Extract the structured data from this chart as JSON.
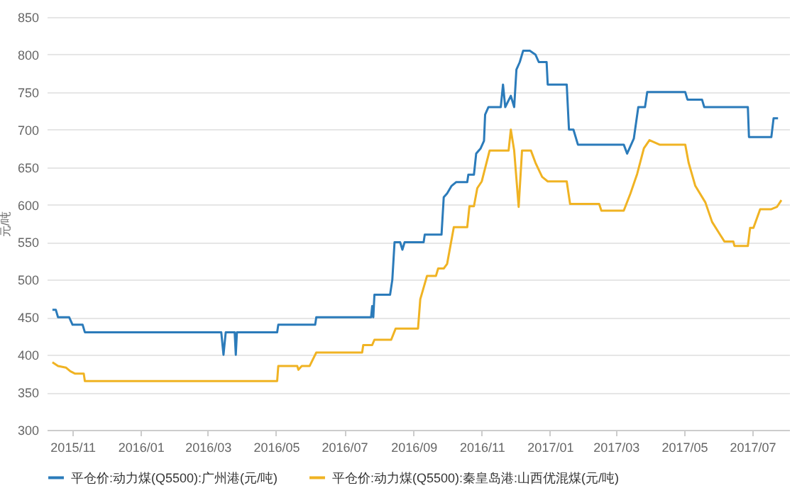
{
  "chart_data": {
    "type": "line",
    "ylabel": "元/吨",
    "xlim": [
      "2015-10-09",
      "2017-08-03"
    ],
    "xticks": [
      {
        "value": "2015-11",
        "label": "2015/11"
      },
      {
        "value": "2016-01",
        "label": "2016/01"
      },
      {
        "value": "2016-03",
        "label": "2016/03"
      },
      {
        "value": "2016-05",
        "label": "2016/05"
      },
      {
        "value": "2016-07",
        "label": "2016/07"
      },
      {
        "value": "2016-09",
        "label": "2016/09"
      },
      {
        "value": "2016-11",
        "label": "2016/11"
      },
      {
        "value": "2017-01",
        "label": "2017/01"
      },
      {
        "value": "2017-03",
        "label": "2017/03"
      },
      {
        "value": "2017-05",
        "label": "2017/05"
      },
      {
        "value": "2017-07",
        "label": "2017/07"
      }
    ],
    "ylim": [
      300,
      850
    ],
    "yticks": [
      300,
      350,
      400,
      450,
      500,
      550,
      600,
      650,
      700,
      750,
      800,
      850
    ],
    "grid": "y",
    "legend": "bottom",
    "marker": "none",
    "line_style": "solid",
    "series": [
      {
        "name": "平仓价:动力煤(Q5500):广州港(元/吨)",
        "color": "#2b7bba",
        "x": [
          "2015-10-14",
          "2015-10-17",
          "2015-10-19",
          "2015-10-29",
          "2015-11-01",
          "2015-11-10",
          "2015-11-12",
          "2016-03-13",
          "2016-03-15",
          "2016-03-17",
          "2016-03-25",
          "2016-03-26",
          "2016-03-27",
          "2016-05-02",
          "2016-05-03",
          "2016-06-05",
          "2016-06-06",
          "2016-07-25",
          "2016-07-26",
          "2016-07-27",
          "2016-07-28",
          "2016-08-11",
          "2016-08-13",
          "2016-08-15",
          "2016-08-20",
          "2016-08-22",
          "2016-08-24",
          "2016-09-10",
          "2016-09-11",
          "2016-09-26",
          "2016-09-28",
          "2016-10-01",
          "2016-10-05",
          "2016-10-09",
          "2016-10-19",
          "2016-10-20",
          "2016-10-25",
          "2016-10-27",
          "2016-10-31",
          "2016-11-03",
          "2016-11-04",
          "2016-11-07",
          "2016-11-18",
          "2016-11-20",
          "2016-11-22",
          "2016-11-27",
          "2016-11-30",
          "2016-12-02",
          "2016-12-05",
          "2016-12-08",
          "2016-12-14",
          "2016-12-19",
          "2016-12-22",
          "2016-12-29",
          "2016-12-30",
          "2017-01-16",
          "2017-01-18",
          "2017-01-22",
          "2017-01-26",
          "2017-03-08",
          "2017-03-11",
          "2017-03-17",
          "2017-03-21",
          "2017-03-27",
          "2017-03-29",
          "2017-05-02",
          "2017-05-04",
          "2017-05-17",
          "2017-05-19",
          "2017-06-27",
          "2017-06-28",
          "2017-07-18",
          "2017-07-20",
          "2017-07-24"
        ],
        "values": [
          460,
          460,
          450,
          450,
          440,
          440,
          430,
          430,
          400,
          430,
          430,
          400,
          430,
          430,
          440,
          440,
          450,
          450,
          465,
          450,
          480,
          480,
          500,
          550,
          550,
          540,
          550,
          550,
          560,
          560,
          610,
          615,
          625,
          630,
          630,
          640,
          640,
          668,
          675,
          685,
          720,
          730,
          730,
          760,
          730,
          745,
          730,
          780,
          790,
          805,
          805,
          800,
          790,
          790,
          760,
          760,
          700,
          700,
          680,
          680,
          668,
          688,
          730,
          730,
          750,
          750,
          740,
          740,
          730,
          730,
          690,
          690,
          715,
          715
        ]
      },
      {
        "name": "平仓价:动力煤(Q5500):秦皇岛港:山西优混煤(元/吨)",
        "color": "#f0b323",
        "x": [
          "2015-10-14",
          "2015-10-19",
          "2015-10-26",
          "2015-10-30",
          "2015-11-03",
          "2015-11-11",
          "2015-11-12",
          "2016-05-02",
          "2016-05-03",
          "2016-05-20",
          "2016-05-21",
          "2016-05-24",
          "2016-05-31",
          "2016-06-06",
          "2016-07-17",
          "2016-07-18",
          "2016-07-26",
          "2016-07-28",
          "2016-08-12",
          "2016-08-16",
          "2016-09-05",
          "2016-09-07",
          "2016-09-13",
          "2016-09-21",
          "2016-09-23",
          "2016-09-28",
          "2016-10-01",
          "2016-10-07",
          "2016-10-19",
          "2016-10-21",
          "2016-10-25",
          "2016-10-28",
          "2016-11-01",
          "2016-11-08",
          "2016-11-25",
          "2016-11-27",
          "2016-11-30",
          "2016-12-04",
          "2016-12-07",
          "2016-12-15",
          "2016-12-19",
          "2016-12-25",
          "2016-12-30",
          "2017-01-16",
          "2017-01-19",
          "2017-02-14",
          "2017-02-16",
          "2017-03-08",
          "2017-03-14",
          "2017-03-20",
          "2017-03-26",
          "2017-03-31",
          "2017-04-09",
          "2017-05-02",
          "2017-05-05",
          "2017-05-11",
          "2017-05-20",
          "2017-05-26",
          "2017-06-06",
          "2017-06-14",
          "2017-06-15",
          "2017-06-27",
          "2017-06-29",
          "2017-07-02",
          "2017-07-08",
          "2017-07-18",
          "2017-07-23",
          "2017-07-27"
        ],
        "values": [
          390,
          385,
          383,
          378,
          375,
          375,
          365,
          365,
          385,
          385,
          380,
          385,
          385,
          403,
          403,
          413,
          413,
          420,
          420,
          435,
          435,
          474,
          505,
          505,
          515,
          515,
          521,
          570,
          570,
          598,
          598,
          622,
          631,
          672,
          672,
          700,
          672,
          597,
          672,
          672,
          656,
          637,
          631,
          631,
          601,
          601,
          592,
          592,
          615,
          641,
          675,
          686,
          680,
          680,
          656,
          625,
          603,
          577,
          551,
          551,
          545,
          545,
          569,
          569,
          594,
          594,
          597,
          606
        ]
      }
    ]
  }
}
